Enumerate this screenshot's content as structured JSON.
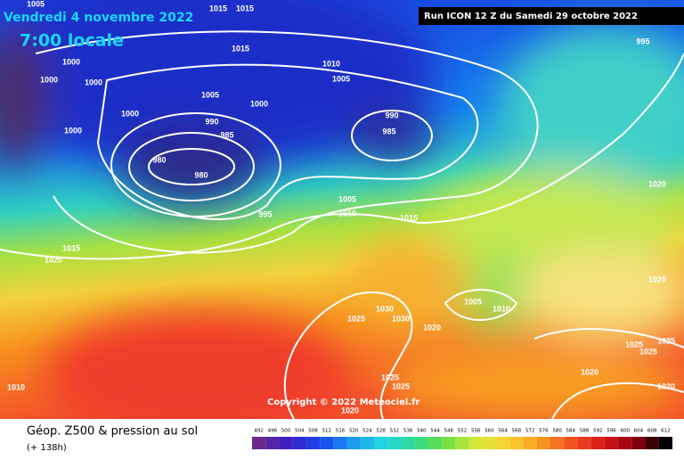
{
  "header": {
    "date": "Vendredi 4 novembre 2022",
    "time": "7:00 locale",
    "run": "Run ICON 12 Z du Samedi 29 octobre 2022"
  },
  "isobar_labels": [
    "1005",
    "1015",
    "1015",
    "1015",
    "1000",
    "1000",
    "1000",
    "1010",
    "1005",
    "1005",
    "1000",
    "1000",
    "990",
    "990",
    "985",
    "985",
    "1000",
    "980",
    "980",
    "995",
    "1005",
    "1010",
    "1015",
    "1020",
    "1015",
    "1020",
    "995",
    "1005",
    "1010",
    "1030",
    "1030",
    "1025",
    "1020",
    "1020",
    "1025",
    "1025",
    "1025",
    "1020",
    "1025",
    "1025",
    "1020",
    "1020",
    "1010"
  ],
  "copyright": "Copyright © 2022 Meteociel.fr",
  "legend": {
    "title": "Géop. Z500 & pression au sol",
    "step": "(+ 138h)",
    "scale": [
      492,
      496,
      500,
      504,
      508,
      512,
      516,
      520,
      524,
      528,
      532,
      536,
      540,
      544,
      548,
      552,
      556,
      560,
      564,
      568,
      572,
      576,
      580,
      584,
      588,
      592,
      596,
      600,
      604,
      608,
      612
    ]
  }
}
